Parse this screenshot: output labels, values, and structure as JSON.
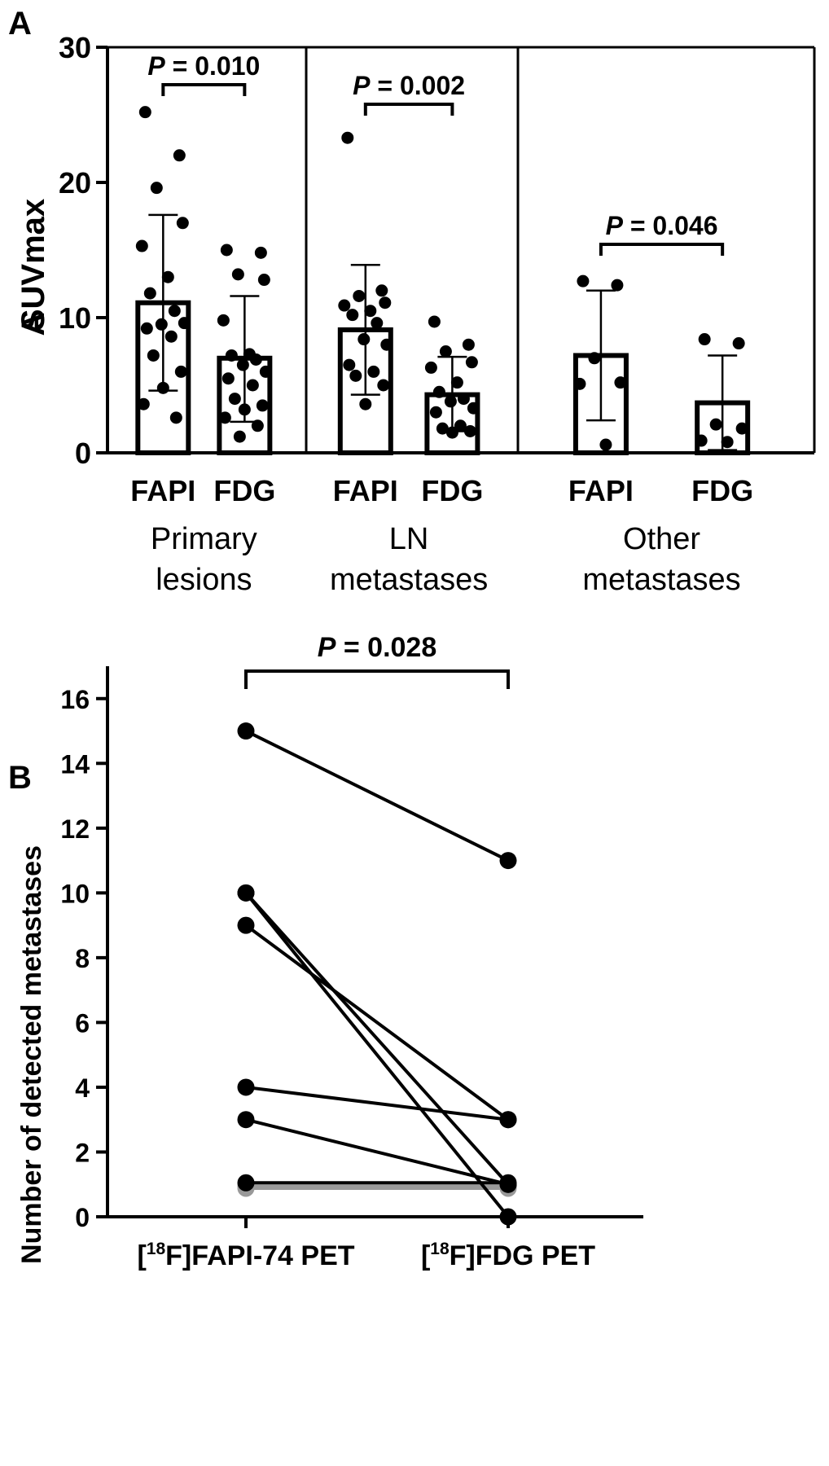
{
  "chart_data": [
    {
      "type": "bar",
      "panel_label": "A",
      "ylabel": "SUVmax",
      "ylabel_overlay": "A",
      "ylim": [
        0,
        30
      ],
      "yticks": [
        "0",
        "10",
        "20",
        "30"
      ],
      "groups": [
        {
          "label_lines": [
            "Primary",
            "lesions"
          ],
          "pvalue": {
            "prefix": "P",
            "text": " = 0.010"
          },
          "bars": [
            {
              "category": "FAPI",
              "mean": 11.1,
              "sd_low": 4.6,
              "sd_high": 17.6,
              "points": [
                25.2,
                22.0,
                19.6,
                17.0,
                15.3,
                13.0,
                11.8,
                10.5,
                9.5,
                9.6,
                9.2,
                8.6,
                7.2,
                6.0,
                4.8,
                3.6,
                2.6
              ]
            },
            {
              "category": "FDG",
              "mean": 7.0,
              "sd_low": 2.3,
              "sd_high": 11.6,
              "points": [
                15.0,
                14.8,
                13.2,
                12.8,
                9.8,
                7.3,
                7.2,
                6.9,
                6.5,
                6.0,
                5.5,
                5.0,
                4.0,
                3.5,
                3.2,
                2.6,
                2.0,
                1.2
              ]
            }
          ]
        },
        {
          "label_lines": [
            "LN",
            "metastases"
          ],
          "pvalue": {
            "prefix": "P",
            "text": " = 0.002"
          },
          "bars": [
            {
              "category": "FAPI",
              "mean": 9.1,
              "sd_low": 4.3,
              "sd_high": 13.9,
              "points": [
                23.3,
                12.0,
                11.6,
                11.1,
                10.9,
                10.5,
                10.2,
                9.6,
                8.4,
                8.0,
                6.5,
                6.0,
                5.7,
                5.0,
                3.6
              ]
            },
            {
              "category": "FDG",
              "mean": 4.3,
              "sd_low": 1.6,
              "sd_high": 7.1,
              "points": [
                9.7,
                8.0,
                7.5,
                6.7,
                6.3,
                5.2,
                4.5,
                4.0,
                3.8,
                3.3,
                3.0,
                2.0,
                1.8,
                1.6,
                1.5
              ]
            }
          ]
        },
        {
          "label_lines": [
            "Other",
            "metastases"
          ],
          "pvalue": {
            "prefix": "P",
            "text": " = 0.046"
          },
          "bars": [
            {
              "category": "FAPI",
              "mean": 7.2,
              "sd_low": 2.4,
              "sd_high": 12.0,
              "points": [
                12.7,
                12.4,
                7.0,
                5.2,
                5.1,
                0.6
              ]
            },
            {
              "category": "FDG",
              "mean": 3.7,
              "sd_low": 0.2,
              "sd_high": 7.2,
              "points": [
                8.4,
                8.1,
                2.1,
                1.8,
                0.9,
                0.8
              ]
            }
          ]
        }
      ]
    },
    {
      "type": "line",
      "panel_label": "B",
      "ylabel": "Number of detected metastases",
      "ylim": [
        0,
        17
      ],
      "yticks": [
        "0",
        "2",
        "4",
        "6",
        "8",
        "10",
        "12",
        "14",
        "16"
      ],
      "categories": [
        {
          "pre": "[",
          "sup": "18",
          "post": "F]FAPI-74 PET"
        },
        {
          "pre": "[",
          "sup": "18",
          "post": "F]FDG PET"
        }
      ],
      "pvalue": {
        "prefix": "P",
        "text": " = 0.028"
      },
      "colors": {
        "main": "#000000",
        "equal": "#999999"
      },
      "pairs": [
        {
          "fapi": 15,
          "fdg": 11,
          "style": "main"
        },
        {
          "fapi": 10,
          "fdg": 1,
          "style": "main"
        },
        {
          "fapi": 10,
          "fdg": 0,
          "style": "main"
        },
        {
          "fapi": 9,
          "fdg": 3,
          "style": "main"
        },
        {
          "fapi": 4,
          "fdg": 3,
          "style": "main"
        },
        {
          "fapi": 3,
          "fdg": 1,
          "style": "main"
        },
        {
          "fapi": 1.05,
          "fdg": 1.05,
          "style": "main"
        },
        {
          "fapi": 0.95,
          "fdg": 0.95,
          "style": "equal"
        },
        {
          "fapi": 0.88,
          "fdg": 0.88,
          "style": "equal"
        }
      ]
    }
  ]
}
